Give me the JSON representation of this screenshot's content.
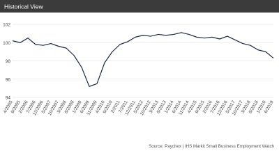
{
  "header": {
    "title": "Historical View"
  },
  "chart_data": {
    "type": "line",
    "categories": [
      "4/2005",
      "9/2005",
      "2/2006",
      "7/2006",
      "12/2006",
      "5/2007",
      "10/2007",
      "3/2008",
      "8/2008",
      "1/2009",
      "6/2009",
      "11/2009",
      "4/2010",
      "9/2010",
      "2/2011",
      "7/2011",
      "12/2011",
      "5/2012",
      "10/2012",
      "3/2013",
      "8/2013",
      "1/2014",
      "6/2014",
      "11/2014",
      "4/2015",
      "9/2015",
      "2/2016",
      "7/2016",
      "12/2016",
      "5/2017",
      "10/2017",
      "3/2018",
      "8/2018",
      "1/2019",
      "6/2019"
    ],
    "series": [
      {
        "color": "#1b2a45",
        "values": [
          100.2,
          100.0,
          100.5,
          99.8,
          99.7,
          99.9,
          99.6,
          99.4,
          98.6,
          97.3,
          95.2,
          95.5,
          97.8,
          99.0,
          99.8,
          100.1,
          100.6,
          100.8,
          100.7,
          100.9,
          100.8,
          100.9,
          101.1,
          100.9,
          100.6,
          100.5,
          100.6,
          100.4,
          100.7,
          100.3,
          99.9,
          99.7,
          99.2,
          99.0,
          98.3
        ]
      }
    ],
    "ylim": [
      94,
      102
    ],
    "yticks": [
      94,
      96,
      98,
      100,
      102
    ],
    "grid": true,
    "source": "Source: Paychex | IHS Markit Small Business Employment Watch"
  }
}
